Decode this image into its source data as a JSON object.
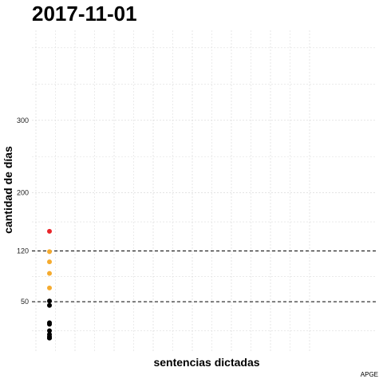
{
  "chart_data": {
    "type": "scatter",
    "title": "2017-11-01",
    "xlabel": "sentencias dictadas",
    "ylabel": "cantidad de días",
    "caption": "APGE",
    "ylim": [
      -18,
      424
    ],
    "y_ticks": [
      50,
      120,
      200,
      300
    ],
    "y_tick_labels": [
      "50",
      "120",
      "200",
      "300"
    ],
    "y_minor": [
      10,
      85,
      160,
      250,
      350,
      400
    ],
    "x_major_count": 8,
    "x_ticks_shown": false,
    "reference_lines": [
      {
        "y": 50,
        "style": "dashed",
        "color": "#000000"
      },
      {
        "y": 120,
        "style": "dashed",
        "color": "#000000"
      }
    ],
    "grid": true,
    "legend": "none",
    "colors": {
      "red": "#e8262a",
      "orange": "#f5ab2f",
      "black": "#000000"
    },
    "points": [
      {
        "y": 147,
        "color": "red"
      },
      {
        "y": 119,
        "color": "orange"
      },
      {
        "y": 105,
        "color": "orange"
      },
      {
        "y": 89,
        "color": "orange"
      },
      {
        "y": 69,
        "color": "orange"
      },
      {
        "y": 51,
        "color": "black"
      },
      {
        "y": 45,
        "color": "black"
      },
      {
        "y": 21,
        "color": "black"
      },
      {
        "y": 19,
        "color": "black"
      },
      {
        "y": 10,
        "color": "black"
      },
      {
        "y": 5,
        "color": "black"
      },
      {
        "y": 2,
        "color": "black"
      },
      {
        "y": 0,
        "color": "black"
      },
      {
        "y": 0,
        "color": "black"
      }
    ]
  }
}
